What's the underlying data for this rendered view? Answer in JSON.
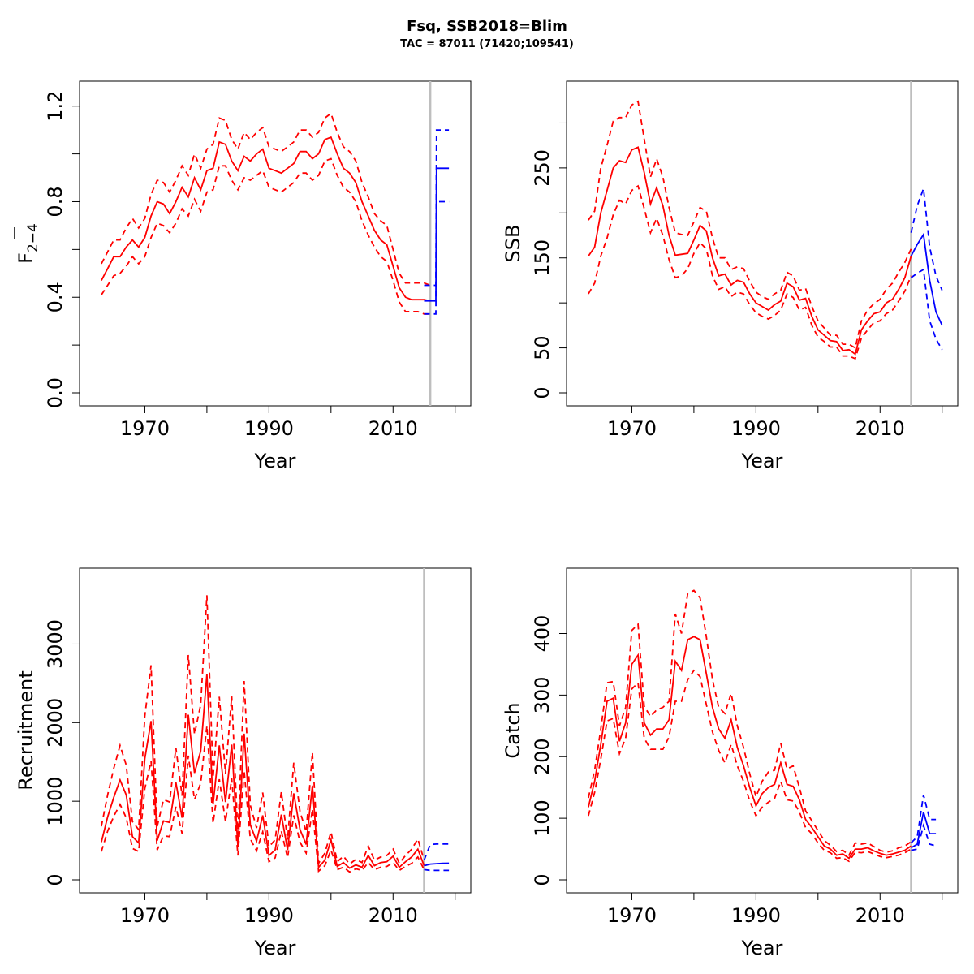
{
  "title": "Fsq, SSB2018=Blim",
  "subtitle": "TAC = 87011 (71420;109541)",
  "colors": {
    "historic": "#ff0000",
    "forecast": "#0000ff",
    "vline": "#bebebe"
  },
  "chart_data": [
    {
      "type": "line",
      "ylabel": "F",
      "ylabel_bar": true,
      "ylabel_sub": "2−4",
      "xlabel": "Year",
      "xlim": [
        1962,
        2020
      ],
      "ylim": [
        0,
        1.25
      ],
      "xticks": [
        1970,
        1990,
        2010
      ],
      "xticks_minor": [
        1980,
        2000,
        2020
      ],
      "yticks": [
        0.0,
        0.4,
        0.8,
        1.2
      ],
      "yticks_minor": [
        0.2,
        0.6,
        1.0
      ],
      "ytick_labels": [
        "0.0",
        "0.4",
        "0.8",
        "1.2"
      ],
      "vline": 2016,
      "history": {
        "x": [
          1963,
          1964,
          1965,
          1966,
          1967,
          1968,
          1969,
          1970,
          1971,
          1972,
          1973,
          1974,
          1975,
          1976,
          1977,
          1978,
          1979,
          1980,
          1981,
          1982,
          1983,
          1984,
          1985,
          1986,
          1987,
          1988,
          1989,
          1990,
          1991,
          1992,
          1993,
          1994,
          1995,
          1996,
          1997,
          1998,
          1999,
          2000,
          2001,
          2002,
          2003,
          2004,
          2005,
          2006,
          2007,
          2008,
          2009,
          2010,
          2011,
          2012,
          2013,
          2014,
          2015,
          2016
        ],
        "mid": [
          0.47,
          0.52,
          0.57,
          0.57,
          0.61,
          0.64,
          0.61,
          0.65,
          0.74,
          0.8,
          0.79,
          0.75,
          0.8,
          0.86,
          0.82,
          0.9,
          0.85,
          0.93,
          0.94,
          1.05,
          1.04,
          0.97,
          0.93,
          0.99,
          0.97,
          1.0,
          1.02,
          0.94,
          0.93,
          0.92,
          0.94,
          0.96,
          1.01,
          1.01,
          0.98,
          1.0,
          1.06,
          1.07,
          1.0,
          0.94,
          0.92,
          0.88,
          0.8,
          0.74,
          0.68,
          0.64,
          0.62,
          0.53,
          0.44,
          0.4,
          0.39,
          0.39,
          0.39,
          0.385
        ],
        "lo": [
          0.41,
          0.45,
          0.49,
          0.5,
          0.53,
          0.57,
          0.54,
          0.57,
          0.65,
          0.71,
          0.7,
          0.67,
          0.71,
          0.77,
          0.74,
          0.81,
          0.76,
          0.84,
          0.85,
          0.95,
          0.95,
          0.89,
          0.85,
          0.9,
          0.89,
          0.91,
          0.93,
          0.86,
          0.85,
          0.84,
          0.86,
          0.88,
          0.92,
          0.92,
          0.89,
          0.91,
          0.97,
          0.98,
          0.91,
          0.86,
          0.84,
          0.8,
          0.72,
          0.66,
          0.61,
          0.57,
          0.55,
          0.47,
          0.38,
          0.34,
          0.34,
          0.34,
          0.33,
          0.33
        ],
        "hi": [
          0.54,
          0.59,
          0.64,
          0.64,
          0.69,
          0.73,
          0.69,
          0.73,
          0.83,
          0.89,
          0.88,
          0.84,
          0.89,
          0.95,
          0.91,
          1.0,
          0.94,
          1.02,
          1.04,
          1.15,
          1.14,
          1.06,
          1.02,
          1.09,
          1.06,
          1.09,
          1.11,
          1.03,
          1.02,
          1.01,
          1.03,
          1.05,
          1.1,
          1.1,
          1.07,
          1.09,
          1.15,
          1.17,
          1.09,
          1.03,
          1.01,
          0.97,
          0.88,
          0.82,
          0.75,
          0.72,
          0.7,
          0.6,
          0.5,
          0.46,
          0.46,
          0.46,
          0.46,
          0.45
        ]
      },
      "forecast": {
        "x": [
          2015,
          2016,
          2016.9,
          2017,
          2018,
          2019
        ],
        "mid": [
          0.385,
          0.385,
          0.385,
          0.94,
          0.94,
          0.94
        ],
        "lo": [
          0.33,
          0.33,
          0.33,
          0.8,
          0.8,
          0.8
        ],
        "hi": [
          0.45,
          0.45,
          0.45,
          1.1,
          1.1,
          1.1
        ]
      }
    },
    {
      "type": "line",
      "ylabel": "SSB",
      "xlabel": "Year",
      "xlim": [
        1962,
        2020
      ],
      "ylim": [
        0,
        332
      ],
      "xticks": [
        1970,
        1990,
        2010
      ],
      "xticks_minor": [
        1980,
        2000,
        2020
      ],
      "yticks": [
        0,
        50,
        150,
        250
      ],
      "yticks_minor": [
        100,
        200,
        300
      ],
      "ytick_labels": [
        "0",
        "50",
        "150",
        "250"
      ],
      "vline": 2015,
      "history": {
        "x": [
          1963,
          1964,
          1965,
          1966,
          1967,
          1968,
          1969,
          1970,
          1971,
          1972,
          1973,
          1974,
          1975,
          1976,
          1977,
          1978,
          1979,
          1980,
          1981,
          1982,
          1983,
          1984,
          1985,
          1986,
          1987,
          1988,
          1989,
          1990,
          1991,
          1992,
          1993,
          1994,
          1995,
          1996,
          1997,
          1998,
          1999,
          2000,
          2001,
          2002,
          2003,
          2004,
          2005,
          2006,
          2007,
          2008,
          2009,
          2010,
          2011,
          2012,
          2013,
          2014,
          2015
        ],
        "mid": [
          152,
          162,
          200,
          225,
          250,
          258,
          256,
          270,
          273,
          245,
          210,
          228,
          208,
          175,
          153,
          154,
          155,
          170,
          186,
          180,
          150,
          130,
          132,
          120,
          125,
          123,
          110,
          100,
          96,
          92,
          98,
          102,
          122,
          118,
          103,
          105,
          85,
          70,
          64,
          58,
          57,
          47,
          48,
          43,
          70,
          80,
          88,
          90,
          100,
          104,
          115,
          128,
          152
        ],
        "lo": [
          110,
          122,
          152,
          172,
          198,
          214,
          210,
          225,
          230,
          205,
          178,
          194,
          175,
          148,
          128,
          130,
          138,
          155,
          167,
          160,
          130,
          115,
          118,
          107,
          112,
          110,
          98,
          89,
          85,
          82,
          86,
          92,
          110,
          106,
          92,
          95,
          75,
          62,
          57,
          51,
          51,
          41,
          41,
          38,
          61,
          70,
          78,
          80,
          88,
          92,
          102,
          113,
          130
        ],
        "hi": [
          192,
          202,
          250,
          275,
          302,
          306,
          306,
          320,
          324,
          282,
          240,
          260,
          240,
          206,
          178,
          176,
          175,
          190,
          206,
          202,
          172,
          150,
          150,
          137,
          140,
          138,
          124,
          112,
          107,
          104,
          110,
          114,
          134,
          130,
          114,
          116,
          96,
          80,
          72,
          64,
          64,
          54,
          54,
          50,
          80,
          92,
          99,
          104,
          115,
          122,
          134,
          145,
          160
        ]
      },
      "forecast": {
        "x": [
          2015,
          2016,
          2017,
          2018,
          2019,
          2020
        ],
        "mid": [
          152,
          165,
          176,
          125,
          90,
          75
        ],
        "lo": [
          128,
          133,
          137,
          80,
          60,
          48
        ],
        "hi": [
          178,
          208,
          227,
          162,
          130,
          114
        ]
      }
    },
    {
      "type": "line",
      "ylabel": "Recruitment",
      "xlabel": "Year",
      "xlim": [
        1962,
        2020
      ],
      "ylim": [
        0,
        3800
      ],
      "xticks": [
        1970,
        1990,
        2010
      ],
      "xticks_minor": [
        1980,
        2000,
        2020
      ],
      "yticks": [
        0,
        1000,
        2000,
        3000
      ],
      "yticks_minor": [],
      "ytick_labels": [
        "0",
        "1000",
        "2000",
        "3000"
      ],
      "vline": 2015,
      "history": {
        "x": [
          1963,
          1964,
          1965,
          1966,
          1967,
          1968,
          1969,
          1970,
          1971,
          1972,
          1973,
          1974,
          1975,
          1976,
          1977,
          1978,
          1979,
          1980,
          1981,
          1982,
          1983,
          1984,
          1985,
          1986,
          1987,
          1988,
          1989,
          1990,
          1991,
          1992,
          1993,
          1994,
          1995,
          1996,
          1997,
          1998,
          1999,
          2000,
          2001,
          2002,
          2003,
          2004,
          2005,
          2006,
          2007,
          2008,
          2009,
          2010,
          2011,
          2012,
          2013,
          2014,
          2015
        ],
        "mid": [
          480,
          800,
          1050,
          1270,
          1080,
          550,
          470,
          1540,
          2020,
          500,
          750,
          730,
          1240,
          790,
          2100,
          1360,
          1640,
          2620,
          960,
          1710,
          990,
          1720,
          420,
          1860,
          700,
          490,
          820,
          310,
          380,
          830,
          380,
          1100,
          640,
          450,
          1200,
          160,
          250,
          510,
          170,
          220,
          150,
          190,
          160,
          310,
          180,
          220,
          230,
          300,
          160,
          230,
          290,
          390,
          180
        ],
        "lo": [
          360,
          620,
          810,
          960,
          790,
          400,
          360,
          1160,
          1510,
          380,
          560,
          550,
          930,
          590,
          1580,
          1020,
          1230,
          1960,
          720,
          1280,
          740,
          1290,
          310,
          1390,
          520,
          370,
          610,
          230,
          280,
          620,
          280,
          820,
          480,
          340,
          900,
          110,
          180,
          380,
          130,
          160,
          100,
          140,
          120,
          220,
          130,
          160,
          170,
          220,
          120,
          170,
          210,
          290,
          130
        ],
        "hi": [
          680,
          1080,
          1420,
          1710,
          1460,
          740,
          640,
          2080,
          2730,
          680,
          1020,
          990,
          1680,
          1070,
          2860,
          1850,
          2230,
          3620,
          1300,
          2330,
          1350,
          2340,
          570,
          2530,
          950,
          660,
          1110,
          420,
          510,
          1120,
          510,
          1490,
          870,
          610,
          1620,
          210,
          340,
          610,
          230,
          300,
          200,
          260,
          220,
          430,
          250,
          290,
          310,
          390,
          210,
          310,
          390,
          520,
          250
        ]
      },
      "forecast": {
        "x": [
          2015,
          2016,
          2017,
          2018,
          2019
        ],
        "mid": [
          180,
          200,
          205,
          210,
          212
        ],
        "lo": [
          130,
          120,
          120,
          120,
          120
        ],
        "hi": [
          250,
          450,
          455,
          455,
          455
        ]
      }
    },
    {
      "type": "line",
      "ylabel": "Catch",
      "xlabel": "Year",
      "xlim": [
        1962,
        2020
      ],
      "ylim": [
        0,
        485
      ],
      "xticks": [
        1970,
        1990,
        2010
      ],
      "xticks_minor": [
        1980,
        2000,
        2020
      ],
      "yticks": [
        0,
        100,
        200,
        300,
        400
      ],
      "yticks_minor": [],
      "ytick_labels": [
        "0",
        "100",
        "200",
        "300",
        "400"
      ],
      "vline": 2015,
      "history": {
        "x": [
          1963,
          1964,
          1965,
          1966,
          1967,
          1968,
          1969,
          1970,
          1971,
          1972,
          1973,
          1974,
          1975,
          1976,
          1977,
          1978,
          1979,
          1980,
          1981,
          1982,
          1983,
          1984,
          1985,
          1986,
          1987,
          1988,
          1989,
          1990,
          1991,
          1992,
          1993,
          1994,
          1995,
          1996,
          1997,
          1998,
          1999,
          2000,
          2001,
          2002,
          2003,
          2004,
          2005,
          2006,
          2007,
          2008,
          2009,
          2010,
          2011,
          2012,
          2013,
          2014,
          2015
        ],
        "mid": [
          118,
          160,
          220,
          290,
          295,
          225,
          255,
          350,
          365,
          255,
          235,
          245,
          245,
          260,
          355,
          340,
          390,
          395,
          390,
          335,
          280,
          245,
          230,
          260,
          215,
          185,
          150,
          120,
          140,
          150,
          155,
          190,
          155,
          152,
          130,
          98,
          85,
          70,
          55,
          50,
          40,
          42,
          35,
          50,
          50,
          52,
          47,
          43,
          40,
          42,
          45,
          48,
          55
        ],
        "lo": [
          104,
          142,
          196,
          258,
          262,
          205,
          230,
          310,
          320,
          230,
          212,
          212,
          212,
          232,
          290,
          290,
          325,
          340,
          330,
          285,
          240,
          210,
          190,
          220,
          185,
          160,
          128,
          104,
          118,
          126,
          132,
          160,
          130,
          128,
          110,
          85,
          75,
          60,
          48,
          44,
          35,
          36,
          30,
          45,
          44,
          46,
          42,
          38,
          36,
          38,
          40,
          44,
          50
        ],
        "hi": [
          133,
          178,
          245,
          320,
          322,
          250,
          280,
          405,
          415,
          282,
          265,
          276,
          280,
          290,
          432,
          400,
          465,
          470,
          458,
          395,
          325,
          280,
          270,
          303,
          250,
          215,
          172,
          135,
          160,
          175,
          178,
          222,
          180,
          185,
          150,
          112,
          96,
          80,
          64,
          56,
          46,
          48,
          40,
          60,
          58,
          60,
          54,
          48,
          45,
          47,
          52,
          55,
          62
        ]
      },
      "forecast": {
        "x": [
          2015,
          2016,
          2017,
          2018,
          2019
        ],
        "mid": [
          52,
          58,
          110,
          75,
          75
        ],
        "lo": [
          48,
          50,
          88,
          58,
          55
        ],
        "hi": [
          60,
          70,
          138,
          98,
          98
        ]
      }
    }
  ]
}
